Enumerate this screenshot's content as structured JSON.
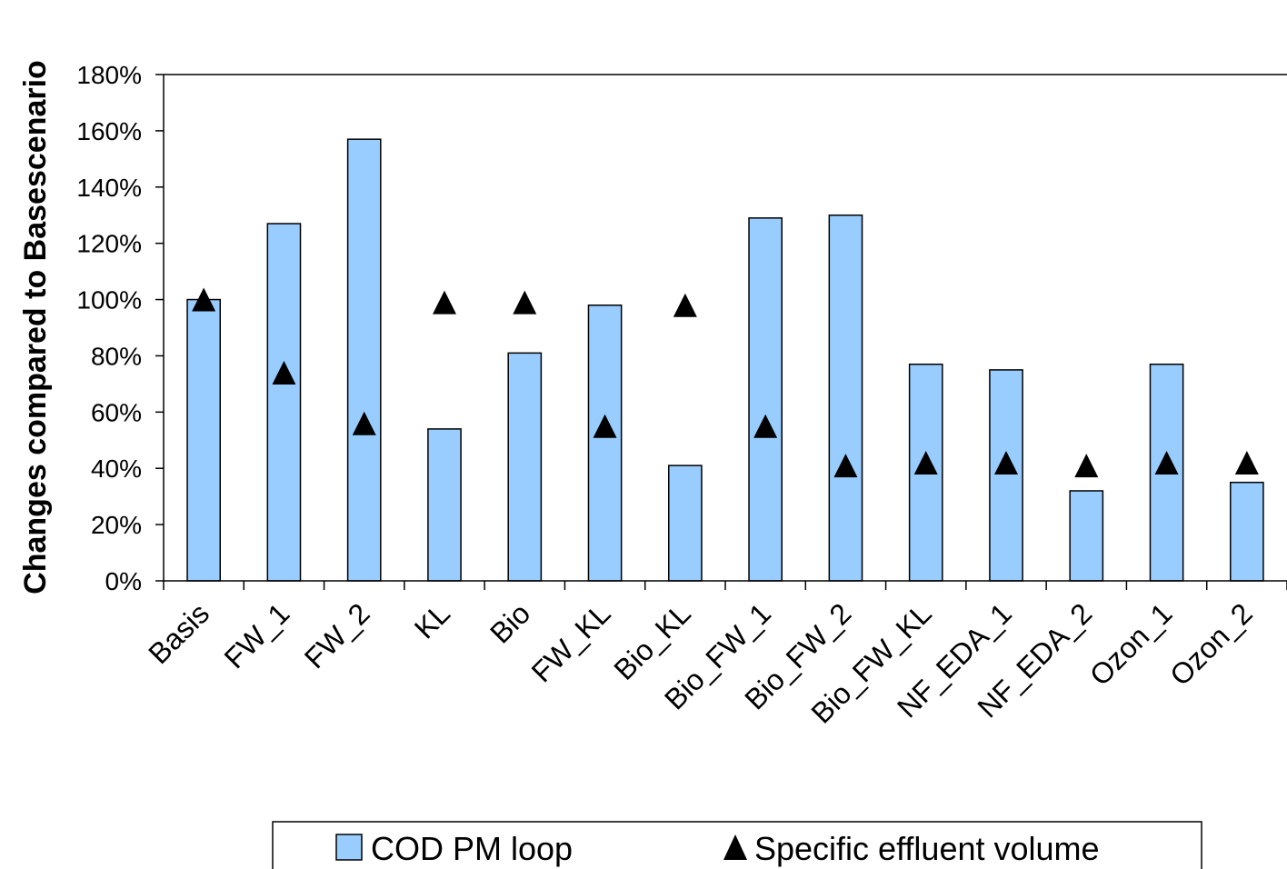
{
  "chart_data": {
    "type": "bar",
    "title": "",
    "xlabel": "",
    "ylabel": "Changes compared to Basescenario",
    "ylim": [
      0,
      180
    ],
    "yticks": [
      "0%",
      "20%",
      "40%",
      "60%",
      "80%",
      "100%",
      "120%",
      "140%",
      "160%",
      "180%"
    ],
    "grid": false,
    "legend_position": "bottom",
    "categories": [
      "Basis",
      "FW_1",
      "FW_2",
      "KL",
      "Bio",
      "FW_KL",
      "Bio_KL",
      "Bio_FW_1",
      "Bio_FW_2",
      "Bio_FW_KL",
      "NF_EDA_1",
      "NF_EDA_2",
      "Ozon_1",
      "Ozon_2"
    ],
    "series": [
      {
        "name": "COD PM loop",
        "kind": "bar",
        "color": "#99ccff",
        "values": [
          100,
          127,
          157,
          54,
          81,
          98,
          41,
          129,
          130,
          77,
          75,
          32,
          77,
          35
        ]
      },
      {
        "name": "Specific effluent volume",
        "kind": "marker-triangle",
        "color": "#000000",
        "values": [
          100,
          74,
          56,
          99,
          99,
          55,
          98,
          55,
          41,
          42,
          42,
          41,
          42,
          42
        ]
      }
    ]
  }
}
